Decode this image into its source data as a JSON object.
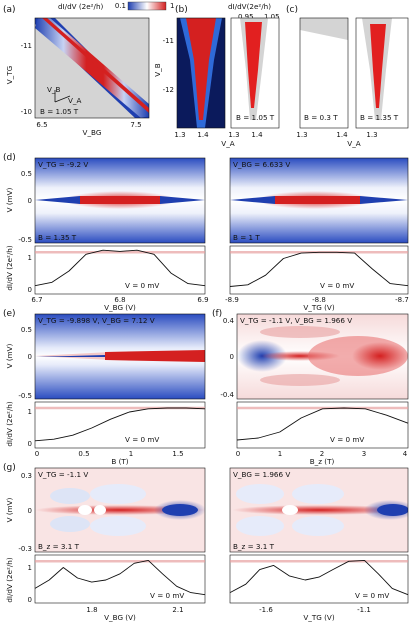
{
  "panels": {
    "a": {
      "label": "(a)",
      "cbar_title": "dI/dV (2e²/h)",
      "cbar_min": "0.1",
      "cbar_max": "1",
      "ylabel": "V_TG",
      "xlabel": "V_BG",
      "yticks": [
        "-11",
        "-10"
      ],
      "xticks": [
        "6.5",
        "7.5"
      ],
      "field": "B = 1.05 T",
      "vb_label": "V_B",
      "va_label": "V_A"
    },
    "b": {
      "label": "(b)",
      "cbar_title": "dI/dV(2e²/h)",
      "cbar_min": "0.95",
      "cbar_max": "1.05",
      "ylabel": "V_B",
      "xlabel": "V_A",
      "yticks": [
        "-11",
        "-12"
      ],
      "xticks1": [
        "1.3",
        "1.4"
      ],
      "xticks2": [
        "1.3",
        "1.4"
      ],
      "field": "B = 1.05 T"
    },
    "c": {
      "label": "(c)",
      "xlabel": "V_A",
      "xticks1": [
        "1.3",
        "1.4"
      ],
      "xticks2": [
        "1.3"
      ],
      "field1": "B = 0.3 T",
      "field2": "B = 1.35 T"
    },
    "d": {
      "label": "(d)",
      "left_title": "V_TG = -9.2 V",
      "right_title": "V_BG = 6.633 V",
      "left_field": "B = 1.35 T",
      "right_field": "B = 1 T",
      "ylabel": "V (mV)",
      "yticks": [
        "0.5",
        "0",
        "-0.5"
      ],
      "line_ylabel": "dI/dV (2e²/h)",
      "line_yticks": [
        "1",
        "0.5",
        "0"
      ],
      "line_note": "V = 0 mV",
      "left_xlabel": "V_BG (V)",
      "right_xlabel": "V_TG (V)",
      "left_xticks": [
        "6.7",
        "6.8",
        "6.9"
      ],
      "right_xticks": [
        "-8.9",
        "-8.8",
        "-8.7"
      ]
    },
    "e": {
      "label": "(e)",
      "title": "V_TG = -9.898 V, V_BG = 7.12 V",
      "ylabel": "V (mV)",
      "yticks": [
        "0.5",
        "0",
        "-0.5"
      ],
      "line_ylabel": "dI/dV (2e²/h)",
      "line_yticks": [
        "1",
        "0.5",
        "0"
      ],
      "line_note": "V = 0 mV",
      "xlabel": "B (T)",
      "xticks": [
        "0",
        "0.5",
        "1",
        "1.5"
      ]
    },
    "f": {
      "label": "(f)",
      "title": "V_TG = -1.1 V, V_BG = 1.966 V",
      "yticks": [
        "0.4",
        "0",
        "-0.4"
      ],
      "line_note": "V = 0 mV",
      "xlabel": "B_z (T)",
      "xticks": [
        "0",
        "1",
        "2",
        "3",
        "4"
      ]
    },
    "g": {
      "label": "(g)",
      "left_title": "V_TG = -1.1 V",
      "right_title": "V_BG = 1.966 V",
      "left_field": "B_z = 3.1 T",
      "right_field": "B_z = 3.1 T",
      "ylabel": "V (mV)",
      "yticks": [
        "0.3",
        "0",
        "-0.3"
      ],
      "line_ylabel": "dI/dV (2e²/h)",
      "line_yticks": [
        "1",
        "0.5",
        "0"
      ],
      "line_note": "V = 0 mV",
      "left_xlabel": "V_BG (V)",
      "right_xlabel": "V_TG (V)",
      "left_xticks": [
        "1.8",
        "2.1"
      ],
      "right_xticks": [
        "-1.6",
        "-1.1"
      ]
    }
  },
  "colors": {
    "map_blue": "#1f3fb0",
    "map_red": "#d42020",
    "map_white": "#ffffff",
    "gray_bg": "#d4d4d4",
    "dark_bg": "#0b1a5c",
    "ref_line": "#e8a0a0",
    "arrow_cyan": "#2ad0e8"
  },
  "chart_data": [
    {
      "type": "line",
      "panel": "d-left",
      "xlabel": "V_BG (V)",
      "ylabel": "dI/dV (2e²/h)",
      "xlim": [
        6.7,
        6.9
      ],
      "ylim": [
        0,
        1.15
      ],
      "reference": 1,
      "series": [
        {
          "x": [
            6.7,
            6.72,
            6.74,
            6.76,
            6.78,
            6.8,
            6.82,
            6.84,
            6.86,
            6.88,
            6.9
          ],
          "y": [
            0.2,
            0.28,
            0.55,
            0.95,
            1.05,
            1.02,
            1.05,
            0.95,
            0.5,
            0.25,
            0.2
          ]
        }
      ]
    },
    {
      "type": "line",
      "panel": "d-right",
      "xlabel": "V_TG (V)",
      "ylabel": "dI/dV (2e²/h)",
      "xlim": [
        -8.9,
        -8.7
      ],
      "ylim": [
        0,
        1.15
      ],
      "reference": 1,
      "series": [
        {
          "x": [
            -8.9,
            -8.88,
            -8.86,
            -8.84,
            -8.82,
            -8.8,
            -8.78,
            -8.76,
            -8.74,
            -8.72,
            -8.7
          ],
          "y": [
            0.18,
            0.22,
            0.45,
            0.85,
            0.98,
            1.0,
            1.0,
            0.98,
            0.6,
            0.25,
            0.2
          ]
        }
      ]
    },
    {
      "type": "line",
      "panel": "e",
      "xlabel": "B (T)",
      "ylabel": "dI/dV (2e²/h)",
      "xlim": [
        0,
        1.8
      ],
      "ylim": [
        0,
        1.15
      ],
      "reference": 1,
      "series": [
        {
          "x": [
            0,
            0.2,
            0.4,
            0.6,
            0.8,
            1.0,
            1.2,
            1.4,
            1.6,
            1.8
          ],
          "y": [
            0.18,
            0.22,
            0.32,
            0.5,
            0.72,
            0.9,
            0.98,
            1.0,
            1.0,
            0.98
          ]
        }
      ]
    },
    {
      "type": "line",
      "panel": "f",
      "xlabel": "B_z (T)",
      "ylabel": "dI/dV (2e²/h)",
      "xlim": [
        0,
        4
      ],
      "ylim": [
        0,
        1.15
      ],
      "reference": 1,
      "series": [
        {
          "x": [
            0,
            0.5,
            1.0,
            1.5,
            2.0,
            2.5,
            3.0,
            3.5,
            4.0
          ],
          "y": [
            0.2,
            0.25,
            0.4,
            0.75,
            0.98,
            1.0,
            0.98,
            0.82,
            0.62
          ]
        }
      ]
    },
    {
      "type": "line",
      "panel": "g-left",
      "xlabel": "V_BG (V)",
      "ylabel": "dI/dV (2e²/h)",
      "xlim": [
        1.6,
        2.2
      ],
      "ylim": [
        0,
        1.15
      ],
      "reference": 1,
      "series": [
        {
          "x": [
            1.6,
            1.65,
            1.7,
            1.75,
            1.8,
            1.85,
            1.9,
            1.95,
            2.0,
            2.05,
            2.1,
            2.15,
            2.2
          ],
          "y": [
            0.35,
            0.55,
            0.85,
            0.6,
            0.5,
            0.55,
            0.7,
            0.95,
            1.02,
            0.7,
            0.4,
            0.25,
            0.2
          ]
        }
      ]
    },
    {
      "type": "line",
      "panel": "g-right",
      "xlabel": "V_TG (V)",
      "ylabel": "dI/dV (2e²/h)",
      "xlim": [
        -1.8,
        -0.9
      ],
      "ylim": [
        0,
        1.15
      ],
      "reference": 1,
      "series": [
        {
          "x": [
            -1.8,
            -1.72,
            -1.65,
            -1.58,
            -1.5,
            -1.42,
            -1.35,
            -1.28,
            -1.2,
            -1.12,
            -1.05,
            -0.98,
            -0.9
          ],
          "y": [
            0.25,
            0.45,
            0.8,
            0.9,
            0.65,
            0.55,
            0.62,
            0.8,
            1.0,
            1.02,
            0.7,
            0.35,
            0.2
          ]
        }
      ]
    }
  ]
}
